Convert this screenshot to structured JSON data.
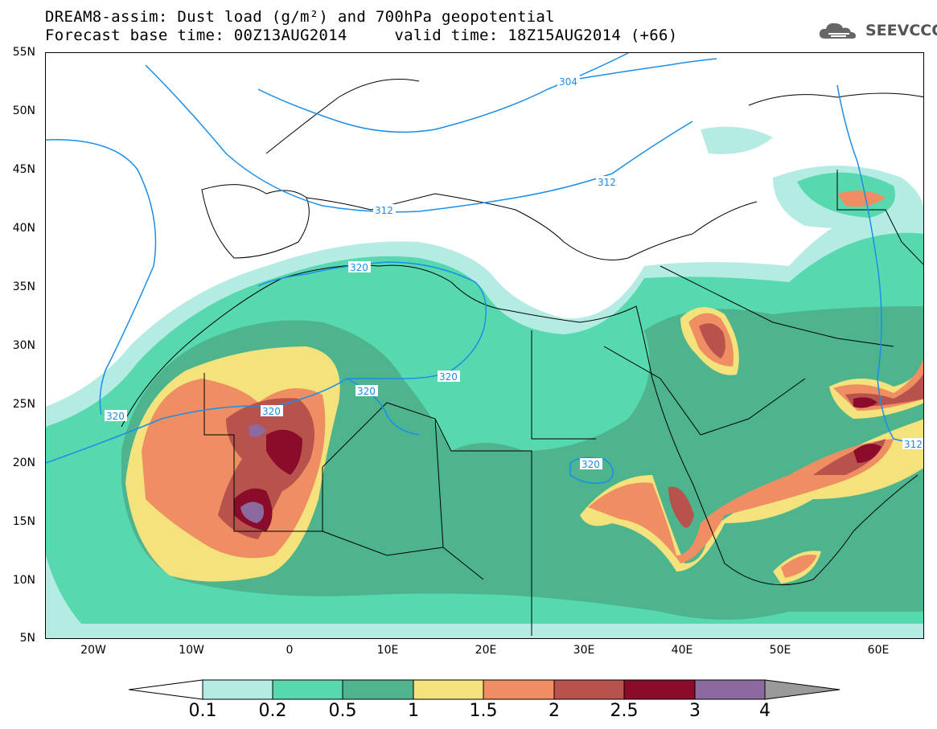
{
  "header": {
    "line1": "DREAM8-assim: Dust load (g/m²) and 700hPa geopotential",
    "line2": "Forecast base time: 00Z13AUG2014     valid time: 18Z15AUG2014 (+66)"
  },
  "logo": {
    "text": "SEEVCCC",
    "icon": "cloud-icon"
  },
  "axes": {
    "lat_labels": [
      "55N",
      "50N",
      "45N",
      "40N",
      "35N",
      "30N",
      "25N",
      "20N",
      "15N",
      "10N",
      "5N"
    ],
    "lon_labels": [
      "20W",
      "10W",
      "0",
      "10E",
      "20E",
      "30E",
      "40E",
      "50E",
      "60E"
    ]
  },
  "contour_labels": [
    "304",
    "312",
    "312",
    "312",
    "320",
    "320",
    "320",
    "320",
    "320",
    "320"
  ],
  "colorbar": {
    "ticks": [
      "0.1",
      "0.2",
      "0.5",
      "1",
      "1.5",
      "2",
      "2.5",
      "3",
      "4"
    ],
    "colors": [
      "#ffffff",
      "#b4ece4",
      "#58d8ae",
      "#4db48d",
      "#f4e27c",
      "#ee8e62",
      "#b8524c",
      "#8b0c2a",
      "#8c6aa0",
      "#9a9a9a"
    ]
  },
  "colors": {
    "contour": "#1a8ee8",
    "border": "#000000"
  }
}
